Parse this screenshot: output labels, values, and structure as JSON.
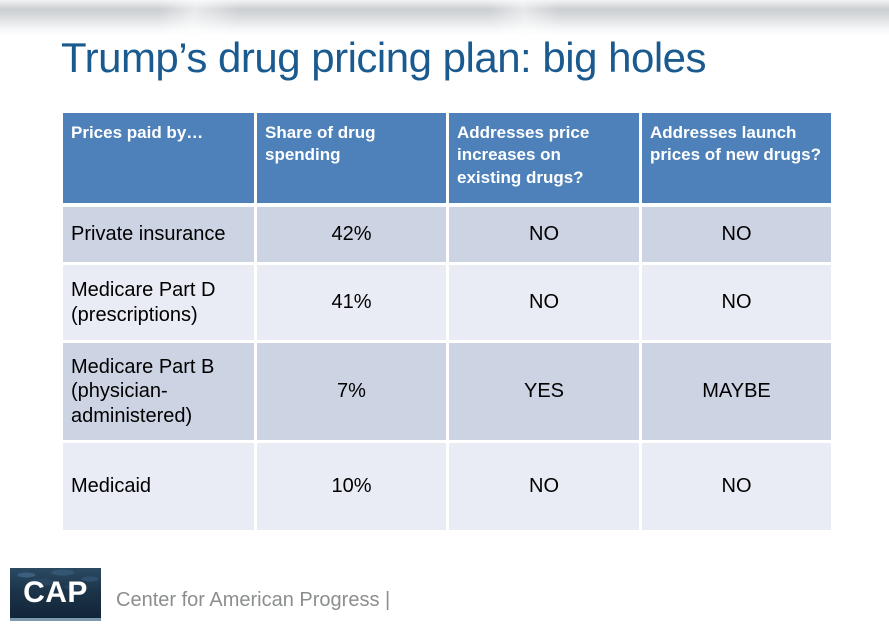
{
  "slide": {
    "title": "Trump’s drug pricing plan: big holes"
  },
  "table": {
    "headers": [
      "Prices paid by…",
      "Share of drug spending",
      "Addresses price increases on existing drugs?",
      "Addresses launch prices of new drugs?"
    ],
    "rows": [
      {
        "payer": "Private insurance",
        "share": "42%",
        "price_increases": "NO",
        "launch_prices": "NO"
      },
      {
        "payer": "Medicare Part D (prescriptions)",
        "share": "41%",
        "price_increases": "NO",
        "launch_prices": "NO"
      },
      {
        "payer": "Medicare Part B (physician-administered)",
        "share": "7%",
        "price_increases": "YES",
        "launch_prices": "MAYBE"
      },
      {
        "payer": "Medicaid",
        "share": "10%",
        "price_increases": "NO",
        "launch_prices": "NO"
      }
    ]
  },
  "footer": {
    "logo_text": "CAP",
    "org_name": "Center for American Progress |"
  },
  "colors": {
    "title_blue": "#1a5a8f",
    "table_header_bg": "#4e81ba",
    "row_band_dark": "#ccd3e3",
    "row_band_light": "#e9ecf5",
    "logo_navy": "#152a3e",
    "footer_text_gray": "#8b8e8f"
  }
}
